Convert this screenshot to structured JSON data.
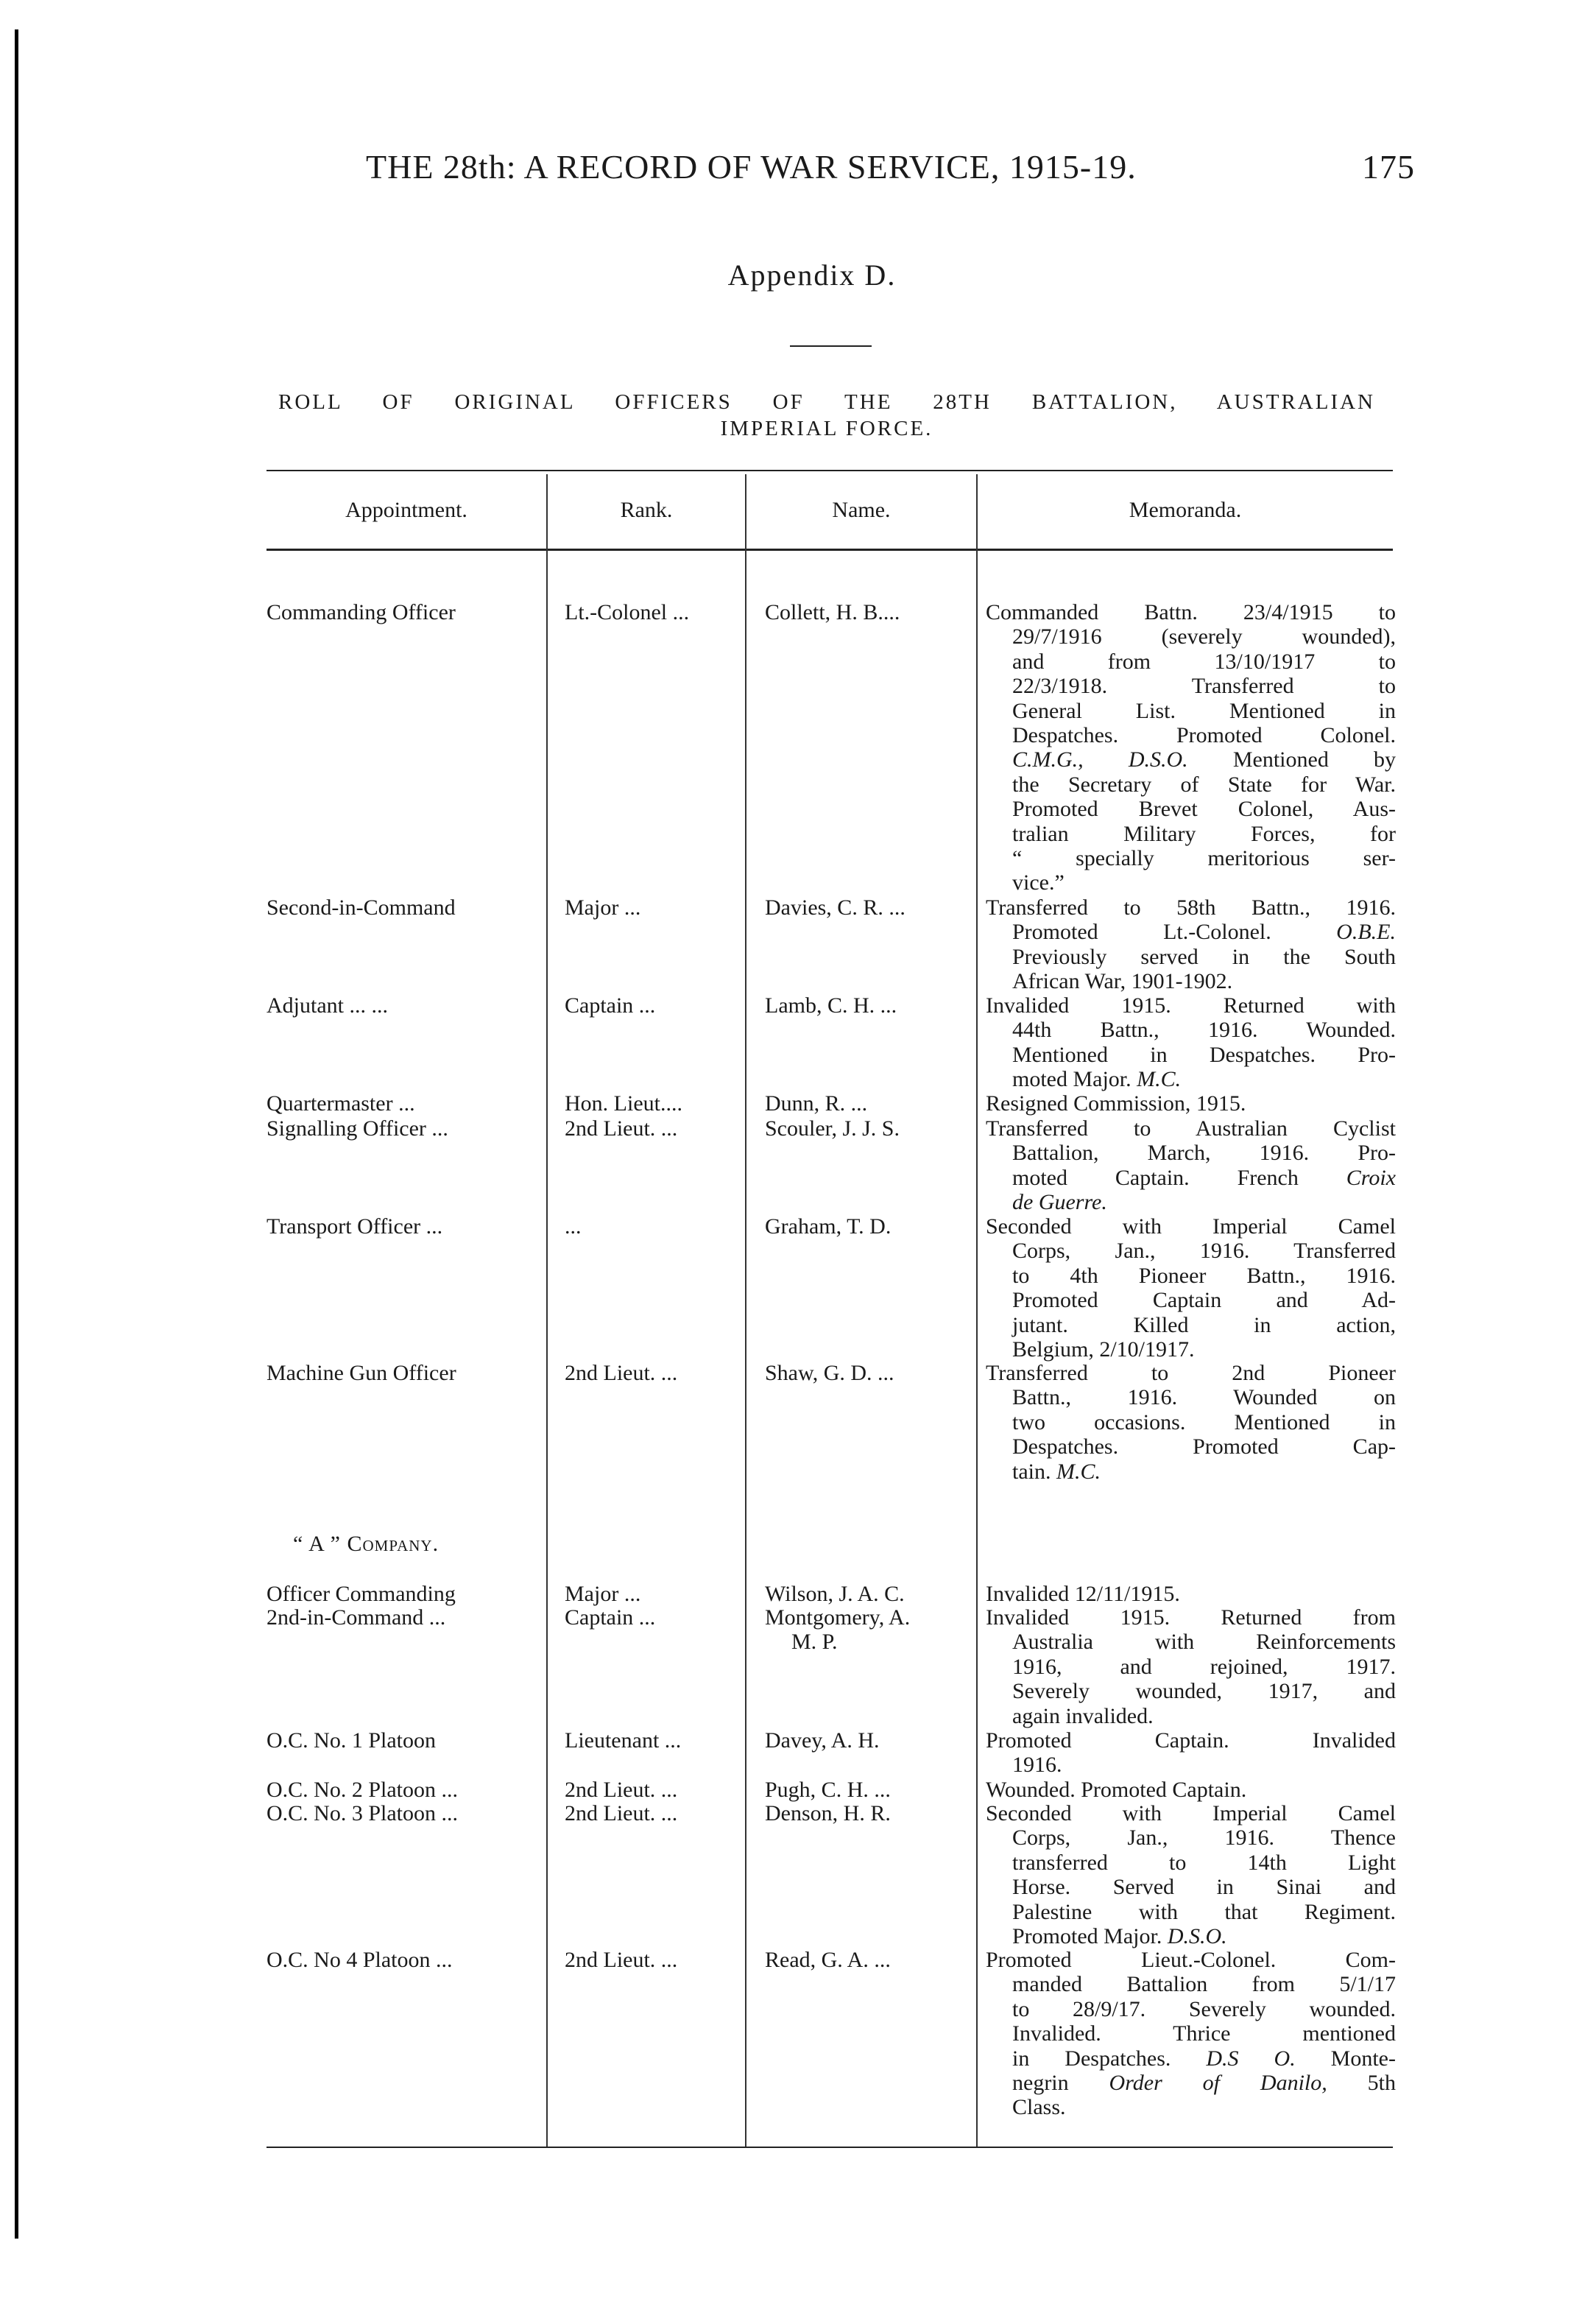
{
  "header": {
    "running_title": "THE 28th: A RECORD OF WAR SERVICE, 1915-19.",
    "page_number": "175"
  },
  "appendix": "Appendix D.",
  "title": {
    "line1": "ROLL OF ORIGINAL OFFICERS OF THE 28TH BATTALION, AUSTRALIAN",
    "line2": "IMPERIAL FORCE."
  },
  "columns": [
    "Appointment.",
    "Rank.",
    "Name.",
    "Memoranda."
  ],
  "rows": [
    {
      "appointment": "Commanding Officer",
      "rank": "Lt.-Colonel ...",
      "name": "Collett, H. B....",
      "memo": [
        [
          "Commanded Battn. 23/4/1915 to"
        ],
        [
          "29/7/1916 (severely wounded),"
        ],
        [
          "and from 13/10/1917 to"
        ],
        [
          "22/3/1918. Transferred to"
        ],
        [
          "General List. Mentioned in"
        ],
        [
          "Despatches. Promoted Colonel."
        ],
        [
          {
            "i": "C.M.G., D.S.O."
          },
          " Mentioned by"
        ],
        [
          "the Secretary of State for War."
        ],
        [
          "Promoted Brevet Colonel, Aus-"
        ],
        [
          "tralian Military Forces, for"
        ],
        [
          "“ specially meritorious ser-"
        ],
        [
          "vice.”"
        ]
      ]
    },
    {
      "appointment": "Second-in-Command",
      "rank": "Major ...",
      "name": "Davies, C. R. ...",
      "memo": [
        [
          "Transferred to 58th Battn., 1916."
        ],
        [
          "Promoted Lt.-Colonel. ",
          {
            "i": "O.B.E."
          }
        ],
        [
          "Previously served in the South"
        ],
        [
          "African War, 1901-1902."
        ]
      ]
    },
    {
      "appointment": "Adjutant ... ...",
      "rank": "Captain ...",
      "name": "Lamb, C. H. ...",
      "memo": [
        [
          "Invalided 1915. Returned with"
        ],
        [
          "44th Battn., 1916. Wounded."
        ],
        [
          "Mentioned in Despatches. Pro-"
        ],
        [
          "moted Major. ",
          {
            "i": "M.C."
          }
        ]
      ]
    },
    {
      "appointment": "Quartermaster ...",
      "rank": "Hon. Lieut....",
      "name": "Dunn, R. ...",
      "memo": [
        [
          "Resigned Commission, 1915."
        ]
      ]
    },
    {
      "appointment": "Signalling Officer ...",
      "rank": "2nd Lieut. ...",
      "name": "Scouler, J. J. S.",
      "memo": [
        [
          "Transferred to Australian Cyclist"
        ],
        [
          "Battalion, March, 1916. Pro-"
        ],
        [
          "moted Captain. French ",
          {
            "i": "Croix"
          }
        ],
        [
          {
            "i": "de Guerre."
          }
        ]
      ]
    },
    {
      "appointment": "Transport Officer ...",
      "rank": "...",
      "name": "Graham, T. D.",
      "memo": [
        [
          "Seconded with Imperial Camel"
        ],
        [
          "Corps, Jan., 1916. Transferred"
        ],
        [
          "to 4th Pioneer Battn., 1916."
        ],
        [
          "Promoted Captain and Ad-"
        ],
        [
          "jutant. Killed in action,"
        ],
        [
          "Belgium, 2/10/1917."
        ]
      ]
    },
    {
      "appointment": "Machine Gun Officer",
      "rank": "2nd Lieut. ...",
      "name": "Shaw, G. D. ...",
      "memo": [
        [
          "Transferred to 2nd Pioneer"
        ],
        [
          "Battn., 1916. Wounded on"
        ],
        [
          "two occasions. Mentioned in"
        ],
        [
          "Despatches. Promoted Cap-"
        ],
        [
          "tain. ",
          {
            "i": "M.C."
          }
        ]
      ]
    },
    {
      "section": "“ A ” Company."
    },
    {
      "appointment": "Officer Commanding",
      "rank": "Major ...",
      "name": "Wilson, J. A. C.",
      "memo": [
        [
          "Invalided 12/11/1915."
        ]
      ]
    },
    {
      "appointment": "2nd-in-Command ...",
      "rank": "Captain ...",
      "name": "Montgomery, A.",
      "name2": "M. P.",
      "memo": [
        [
          "Invalided 1915. Returned from"
        ],
        [
          "Australia with Reinforcements"
        ],
        [
          "1916, and rejoined, 1917."
        ],
        [
          "Severely wounded, 1917, and"
        ],
        [
          "again invalided."
        ]
      ]
    },
    {
      "appointment": "O.C. No. 1 Platoon",
      "rank": "Lieutenant ...",
      "name": "Davey, A. H.",
      "memo": [
        [
          "Promoted Captain. Invalided"
        ],
        [
          "1916."
        ]
      ]
    },
    {
      "appointment": "O.C. No. 2 Platoon ...",
      "rank": "2nd Lieut. ...",
      "name": "Pugh, C. H. ...",
      "memo": [
        [
          "Wounded. Promoted Captain."
        ]
      ]
    },
    {
      "appointment": "O.C. No. 3 Platoon ...",
      "rank": "2nd Lieut. ...",
      "name": "Denson, H. R.",
      "memo": [
        [
          "Seconded with Imperial Camel"
        ],
        [
          "Corps, Jan., 1916. Thence"
        ],
        [
          "transferred to 14th Light"
        ],
        [
          "Horse. Served in Sinai and"
        ],
        [
          "Palestine with that Regiment."
        ],
        [
          "Promoted Major. ",
          {
            "i": "D.S.O."
          }
        ]
      ]
    },
    {
      "appointment": "O.C. No 4 Platoon ...",
      "rank": "2nd Lieut. ...",
      "name": "Read, G. A. ...",
      "memo": [
        [
          "Promoted Lieut.-Colonel. Com-"
        ],
        [
          "manded Battalion from 5/1/17"
        ],
        [
          "to 28/9/17. Severely wounded."
        ],
        [
          "Invalided. Thrice mentioned"
        ],
        [
          "in Despatches. ",
          {
            "i": "D.S O."
          },
          " Monte-"
        ],
        [
          "negrin ",
          {
            "i": "Order of Danilo,"
          },
          " 5th"
        ],
        [
          "Class."
        ]
      ]
    }
  ]
}
